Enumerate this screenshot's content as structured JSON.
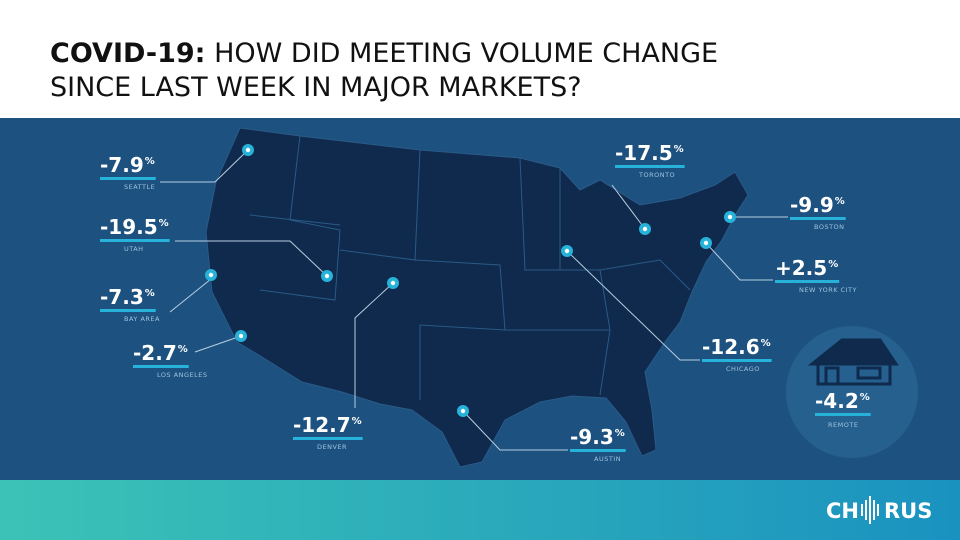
{
  "header": {
    "title_bold": "COVID-19:",
    "title_rest_1": "HOW DID MEETING VOLUME CHANGE",
    "title_rest_2": "SINCE LAST WEEK IN MAJOR MARKETS?"
  },
  "markets": [
    {
      "value": "-7.9",
      "unit": "%",
      "name": "SEATTLE"
    },
    {
      "value": "-19.5",
      "unit": "%",
      "name": "UTAH"
    },
    {
      "value": "-7.3",
      "unit": "%",
      "name": "BAY AREA"
    },
    {
      "value": "-2.7",
      "unit": "%",
      "name": "LOS ANGELES"
    },
    {
      "value": "-12.7",
      "unit": "%",
      "name": "DENVER"
    },
    {
      "value": "-9.3",
      "unit": "%",
      "name": "AUSTIN"
    },
    {
      "value": "-12.6",
      "unit": "%",
      "name": "CHICAGO"
    },
    {
      "value": "-17.5",
      "unit": "%",
      "name": "TORONTO"
    },
    {
      "value": "-9.9",
      "unit": "%",
      "name": "BOSTON"
    },
    {
      "value": "+2.5",
      "unit": "%",
      "name": "NEW YORK CITY"
    }
  ],
  "remote": {
    "value": "-4.2",
    "unit": "%",
    "name": "REMOTE"
  },
  "logo": {
    "left": "CH",
    "right": "RUS"
  }
}
